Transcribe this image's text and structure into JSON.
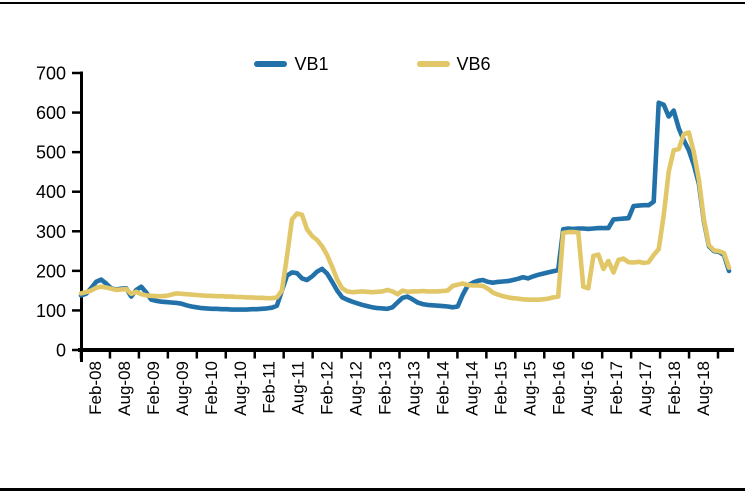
{
  "figure": {
    "title": "",
    "background": "#ffffff",
    "border_rule_color": "#000000"
  },
  "chart_data": {
    "type": "line",
    "title": "",
    "xlabel": "",
    "ylabel": "",
    "grid": false,
    "legend_position": "top-center",
    "x_axis": {
      "frequency": "monthly",
      "start": "Feb-08",
      "end": "Nov-18",
      "tick_labels": [
        "Feb-08",
        "Aug-08",
        "Feb-09",
        "Aug-09",
        "Feb-10",
        "Aug-10",
        "Feb-11",
        "Aug-11",
        "Feb-12",
        "Aug-12",
        "Feb-13",
        "Aug-13",
        "Feb-14",
        "Aug-14",
        "Feb-15",
        "Aug-15",
        "Feb-16",
        "Aug-16",
        "Feb-17",
        "Aug-17",
        "Feb-18",
        "Aug-18"
      ]
    },
    "y_axis": {
      "min": 0,
      "max": 700,
      "tick_step": 100,
      "tick_labels": [
        "0",
        "100",
        "200",
        "300",
        "400",
        "500",
        "600",
        "700"
      ]
    },
    "axis_color": "#000000",
    "series": [
      {
        "name": "VB1",
        "color": "#2272A9",
        "values": [
          138,
          142,
          156,
          172,
          178,
          168,
          156,
          153,
          155,
          156,
          135,
          152,
          160,
          145,
          127,
          124,
          122,
          121,
          120,
          119,
          117,
          113,
          110,
          108,
          106,
          105,
          104,
          104,
          103,
          103,
          102,
          102,
          102,
          102,
          103,
          103,
          104,
          105,
          107,
          112,
          150,
          188,
          196,
          194,
          181,
          177,
          186,
          198,
          205,
          193,
          172,
          150,
          133,
          127,
          122,
          118,
          114,
          111,
          108,
          106,
          105,
          104,
          108,
          120,
          132,
          135,
          128,
          120,
          116,
          114,
          113,
          112,
          111,
          110,
          108,
          110,
          140,
          163,
          170,
          175,
          177,
          172,
          170,
          172,
          173,
          174,
          177,
          180,
          184,
          181,
          186,
          190,
          193,
          196,
          199,
          202,
          305,
          307,
          306,
          307,
          307,
          306,
          307,
          308,
          308,
          308,
          330,
          331,
          332,
          333,
          364,
          365,
          366,
          366,
          375,
          625,
          620,
          590,
          605,
          560,
          530,
          505,
          468,
          420,
          325,
          262,
          250,
          248,
          240,
          200
        ]
      },
      {
        "name": "VB6",
        "color": "#E2C768",
        "values": [
          143,
          146,
          150,
          157,
          160,
          158,
          155,
          152,
          153,
          154,
          142,
          147,
          141,
          138,
          137,
          136,
          136,
          137,
          140,
          143,
          142,
          141,
          140,
          139,
          138,
          137,
          137,
          136,
          136,
          135,
          135,
          134,
          134,
          133,
          133,
          132,
          132,
          131,
          131,
          133,
          150,
          237,
          330,
          345,
          342,
          305,
          288,
          278,
          262,
          240,
          210,
          178,
          156,
          148,
          146,
          147,
          148,
          147,
          146,
          147,
          148,
          152,
          148,
          141,
          150,
          147,
          148,
          148,
          149,
          148,
          148,
          148,
          149,
          150,
          162,
          165,
          168,
          164,
          163,
          163,
          162,
          155,
          145,
          140,
          136,
          133,
          131,
          130,
          128,
          127,
          127,
          127,
          128,
          130,
          133,
          135,
          296,
          298,
          298,
          297,
          160,
          156,
          238,
          241,
          205,
          225,
          196,
          228,
          231,
          222,
          221,
          223,
          220,
          222,
          240,
          255,
          340,
          450,
          505,
          508,
          545,
          550,
          500,
          430,
          330,
          265,
          252,
          250,
          245,
          208
        ]
      }
    ]
  }
}
